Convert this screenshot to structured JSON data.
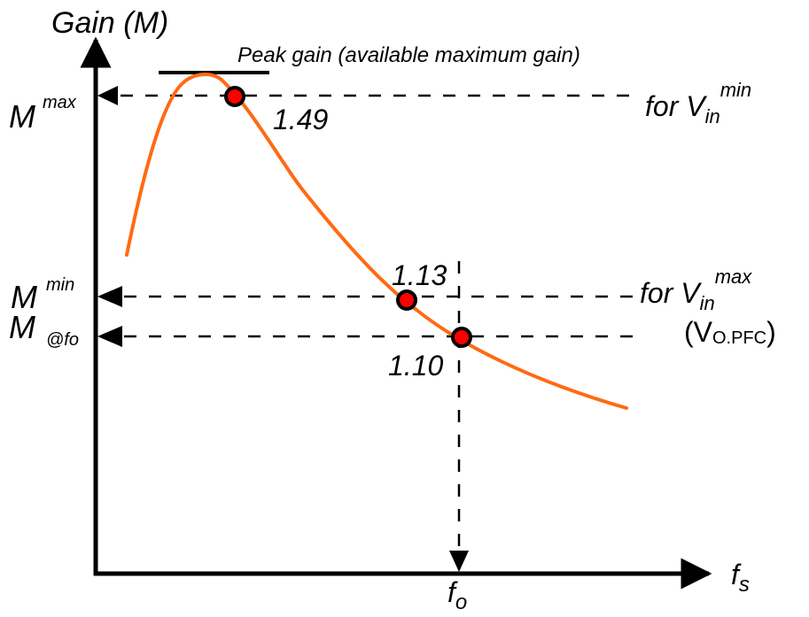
{
  "y_axis": {
    "label": "Gain (M)"
  },
  "x_axis": {
    "label_main": "f",
    "label_sub": "s",
    "marker_main": "f",
    "marker_sub": "o"
  },
  "peak": {
    "label": "Peak gain (available maximum gain)"
  },
  "levels": {
    "max": {
      "symbol": "M",
      "sup": "max",
      "value": "1.49",
      "note_pre": "for V",
      "note_sub": "in",
      "note_sup": "min"
    },
    "min": {
      "symbol": "M",
      "sup": "min",
      "value": "1.13",
      "note_pre": "for V",
      "note_sub": "in",
      "note_sup": "max"
    },
    "fo": {
      "symbol": "M",
      "sub": "@fo",
      "value": "1.10",
      "note_open": "(V",
      "note_sub": "O.PFC",
      "note_close": ")"
    }
  },
  "colors": {
    "curve": "#ff6a13",
    "marker_fill": "#ff0000",
    "axis": "#000000"
  }
}
